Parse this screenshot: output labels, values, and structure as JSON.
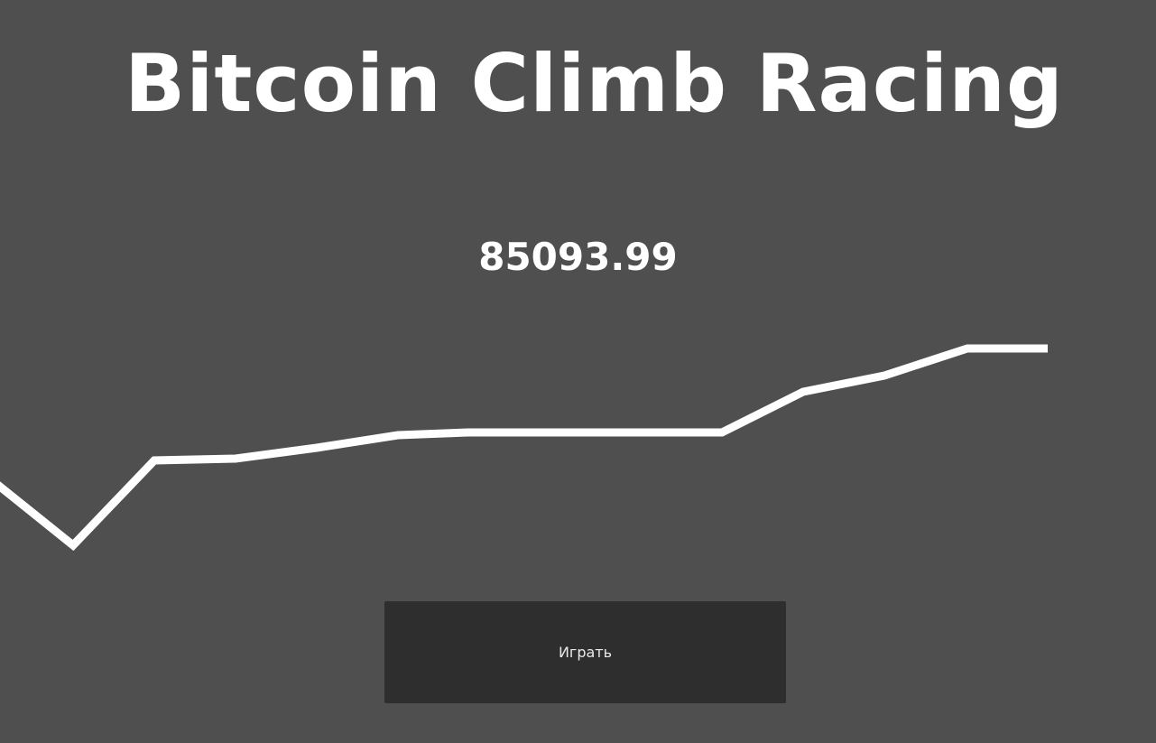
{
  "game": {
    "title": "Bitcoin Climb Racing",
    "price": "85093.99",
    "play_label": "Играть"
  },
  "colors": {
    "background": "#4f4f4f",
    "track": "#ffffff",
    "button": "#2e2e2e",
    "button_text": "#eaeaea"
  }
}
